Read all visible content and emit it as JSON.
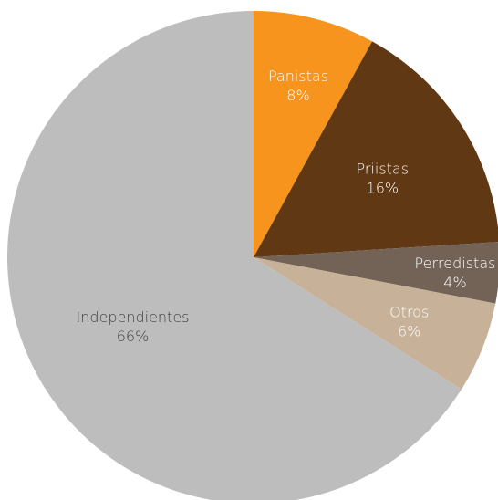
{
  "chart_data": {
    "type": "pie",
    "start_angle_deg": 0,
    "direction": "clockwise",
    "slices": [
      {
        "label": "Panistas",
        "value": 8,
        "pct_label": "8%",
        "color": "#f7941d",
        "text_color": "#ffffff"
      },
      {
        "label": "Priistas",
        "value": 16,
        "pct_label": "16%",
        "color": "#603813",
        "text_color": "#ffffff"
      },
      {
        "label": "Perredistas",
        "value": 4,
        "pct_label": "4%",
        "color": "#736357",
        "text_color": "#ffffff"
      },
      {
        "label": "Otros",
        "value": 6,
        "pct_label": "6%",
        "color": "#c7b299",
        "text_color": "#ffffff"
      },
      {
        "label": "Independientes",
        "value": 66,
        "pct_label": "66%",
        "color": "#bdbdbd",
        "text_color": "#404040"
      }
    ]
  }
}
